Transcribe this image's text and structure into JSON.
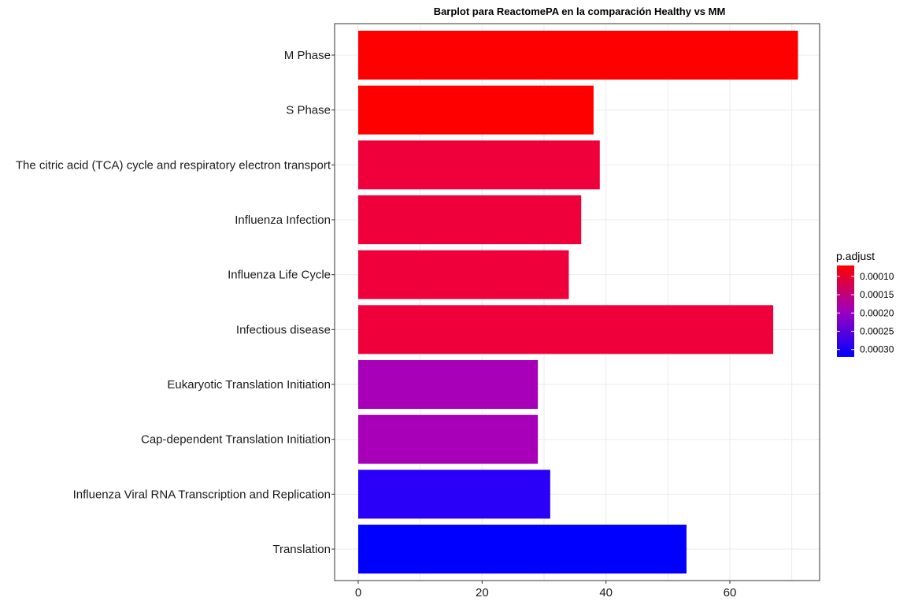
{
  "chart_data": {
    "type": "bar",
    "orientation": "horizontal",
    "title": "Barplot para ReactomePA en la comparación Healthy vs MM",
    "xlabel": "",
    "ylabel": "",
    "xlim": [
      0,
      74
    ],
    "xticks": [
      0,
      20,
      40,
      60
    ],
    "grid": true,
    "categories": [
      "M Phase",
      "S Phase",
      "The citric acid (TCA) cycle and respiratory electron transport",
      "Influenza Infection",
      "Influenza Life Cycle",
      "Infectious disease",
      "Eukaryotic Translation Initiation",
      "Cap-dependent Translation Initiation",
      "Influenza Viral RNA Transcription and Replication",
      "Translation"
    ],
    "values": [
      71,
      38,
      39,
      36,
      34,
      67,
      29,
      29,
      31,
      53
    ],
    "p_adjust": [
      7e-05,
      7e-05,
      0.00013,
      0.00013,
      0.00013,
      0.00013,
      0.00022,
      0.00022,
      0.0003,
      0.00032
    ],
    "bar_colors": [
      "#FF0000",
      "#FF0000",
      "#F0003A",
      "#F0003A",
      "#F0003A",
      "#F0003A",
      "#A800B8",
      "#A800B8",
      "#2A00F8",
      "#0000FF"
    ],
    "legend": {
      "title": "p.adjust",
      "position": "right",
      "ticks": [
        0.0001,
        0.00015,
        0.0002,
        0.00025,
        0.0003
      ],
      "tick_labels": [
        "0.00010",
        "0.00015",
        "0.00020",
        "0.00025",
        "0.00030"
      ],
      "range": [
        7e-05,
        0.00032
      ],
      "color_low": "#FF0000",
      "color_high": "#0000FF"
    }
  }
}
